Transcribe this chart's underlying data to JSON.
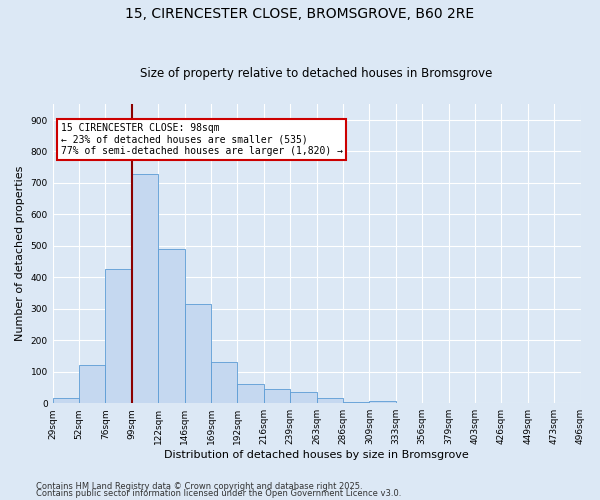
{
  "title1": "15, CIRENCESTER CLOSE, BROMSGROVE, B60 2RE",
  "title2": "Size of property relative to detached houses in Bromsgrove",
  "xlabel": "Distribution of detached houses by size in Bromsgrove",
  "ylabel": "Number of detached properties",
  "bar_values": [
    15,
    120,
    425,
    730,
    490,
    315,
    130,
    60,
    45,
    35,
    15,
    5,
    8,
    0,
    0,
    0,
    0,
    0,
    0,
    0
  ],
  "bin_labels": [
    "29sqm",
    "52sqm",
    "76sqm",
    "99sqm",
    "122sqm",
    "146sqm",
    "169sqm",
    "192sqm",
    "216sqm",
    "239sqm",
    "263sqm",
    "286sqm",
    "309sqm",
    "333sqm",
    "356sqm",
    "379sqm",
    "403sqm",
    "426sqm",
    "449sqm",
    "473sqm",
    "496sqm"
  ],
  "bar_color": "#c5d8f0",
  "bar_edge_color": "#5b9bd5",
  "vline_x": 3.0,
  "vline_color": "#8b0000",
  "annotation_text": "15 CIRENCESTER CLOSE: 98sqm\n← 23% of detached houses are smaller (535)\n77% of semi-detached houses are larger (1,820) →",
  "annotation_box_color": "#ffffff",
  "annotation_box_edge": "#cc0000",
  "ylim": [
    0,
    950
  ],
  "yticks": [
    0,
    100,
    200,
    300,
    400,
    500,
    600,
    700,
    800,
    900
  ],
  "background_color": "#dce8f5",
  "footer1": "Contains HM Land Registry data © Crown copyright and database right 2025.",
  "footer2": "Contains public sector information licensed under the Open Government Licence v3.0.",
  "title1_fontsize": 10,
  "title2_fontsize": 8.5,
  "tick_fontsize": 6.5,
  "label_fontsize": 8,
  "footer_fontsize": 6,
  "annotation_fontsize": 7
}
